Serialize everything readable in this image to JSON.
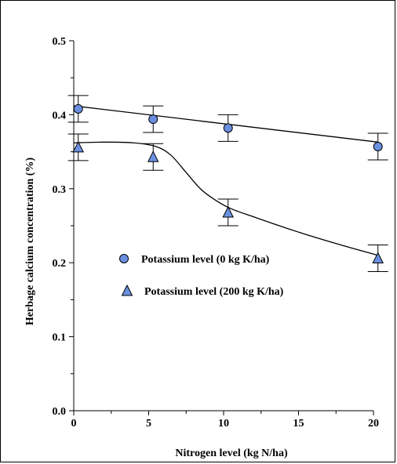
{
  "chart_data": {
    "type": "scatter",
    "title": "",
    "xlabel": "Nitrogen level (kg N/ha)",
    "ylabel": "Herbage calcium concentration (%)",
    "xlim": [
      0,
      20
    ],
    "ylim": [
      0,
      0.5
    ],
    "x_ticks": [
      0,
      5,
      10,
      15,
      20
    ],
    "x_tick_labels": [
      "0",
      "5",
      "10",
      "15",
      "20"
    ],
    "y_ticks": [
      0.0,
      0.1,
      0.2,
      0.3,
      0.4,
      0.5
    ],
    "y_tick_labels": [
      "0.0",
      "0.1",
      "0.2",
      "0.3",
      "0.4",
      "0.5"
    ],
    "grid": false,
    "legend_position": "center",
    "marker_color": "#6a8fe0",
    "series": [
      {
        "name": "Potassium level (0 kg K/ha)",
        "marker": "circle",
        "x": [
          0.3,
          5.3,
          10.3,
          20.3
        ],
        "y": [
          0.408,
          0.394,
          0.382,
          0.357
        ],
        "error": [
          0.018,
          0.018,
          0.018,
          0.018
        ],
        "fit": "linear",
        "fit_x": [
          0,
          20.3
        ],
        "fit_y": [
          0.412,
          0.363
        ]
      },
      {
        "name": "Potassium level (200 kg K/ha)",
        "marker": "triangle",
        "x": [
          0.3,
          5.3,
          10.3,
          20.3
        ],
        "y": [
          0.356,
          0.343,
          0.268,
          0.206
        ],
        "error": [
          0.018,
          0.018,
          0.018,
          0.018
        ],
        "fit": "sigmoid",
        "fit_x": [
          0,
          2,
          4,
          5.5,
          6.5,
          7.5,
          8.5,
          9.5,
          10.5,
          12,
          14,
          16,
          18,
          20.3
        ],
        "fit_y": [
          0.362,
          0.363,
          0.362,
          0.357,
          0.345,
          0.322,
          0.299,
          0.284,
          0.273,
          0.262,
          0.248,
          0.235,
          0.223,
          0.21
        ]
      }
    ]
  }
}
